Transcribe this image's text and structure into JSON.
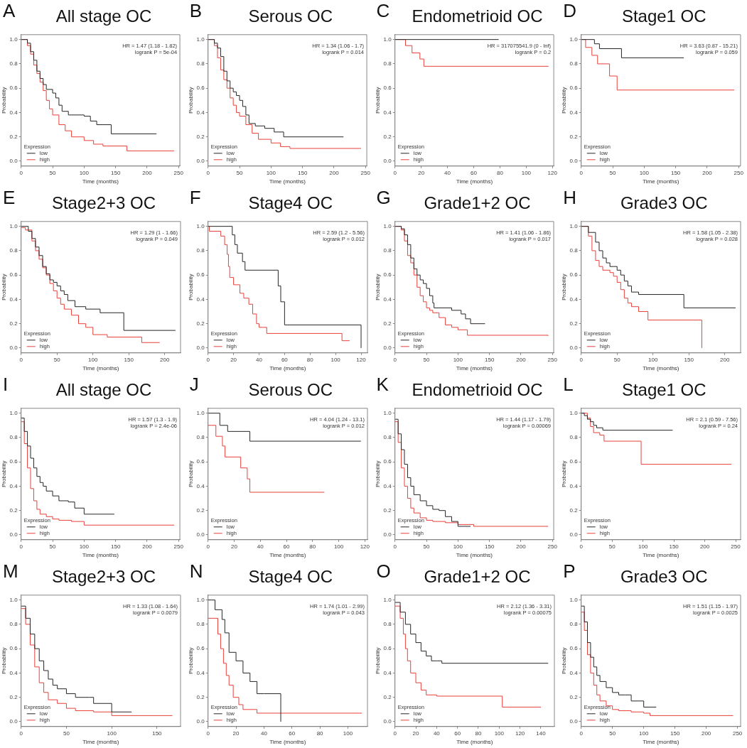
{
  "chart_data": [
    {
      "type": "step",
      "title": "All stage OC",
      "annotations": [
        "A",
        "HR = 1.47 (1.18 - 1.82)",
        "logrank P = 5e-04"
      ],
      "xlabel": "Time (months)",
      "ylabel": "Probability",
      "legend_title": "Expression",
      "legend": "bottom left",
      "xlim": [
        0,
        252
      ],
      "xticks": [
        0,
        50,
        100,
        150,
        200,
        250
      ],
      "ylim": [
        -0.04,
        1.04
      ],
      "yticks": [
        {
          "value": 0,
          "label": "0.0"
        },
        {
          "value": 0.2,
          "label": "0.2"
        },
        {
          "value": 0.4,
          "label": "0.4"
        },
        {
          "value": 0.6,
          "label": "0.6"
        },
        {
          "value": 0.8,
          "label": "0.8"
        },
        {
          "value": 1,
          "label": "1.0"
        }
      ],
      "series": [
        {
          "name": "low",
          "color": "#262626",
          "x": [
            0,
            10,
            15,
            20,
            25,
            30,
            35,
            40,
            50,
            55,
            60,
            65,
            75,
            100,
            110,
            120,
            143,
            215
          ],
          "values": [
            1,
            0.97,
            0.9,
            0.83,
            0.74,
            0.68,
            0.63,
            0.59,
            0.56,
            0.52,
            0.46,
            0.41,
            0.38,
            0.37,
            0.33,
            0.3,
            0.225,
            0.225
          ]
        },
        {
          "name": "high",
          "color": "#e8403a",
          "x": [
            0,
            10,
            15,
            20,
            25,
            30,
            35,
            40,
            45,
            50,
            60,
            70,
            80,
            100,
            115,
            130,
            168,
            243
          ],
          "values": [
            1,
            0.95,
            0.88,
            0.79,
            0.72,
            0.65,
            0.58,
            0.5,
            0.43,
            0.38,
            0.3,
            0.25,
            0.2,
            0.17,
            0.14,
            0.125,
            0.085,
            0.085
          ]
        }
      ]
    },
    {
      "type": "step",
      "title": "Serous OC",
      "annotations": [
        "B",
        "HR = 1.34 (1.06 - 1.7)",
        "logrank P = 0.014"
      ],
      "xlabel": "Time (months)",
      "ylabel": "Probability",
      "legend_title": "Expression",
      "legend": "bottom left",
      "xlim": [
        0,
        252
      ],
      "xticks": [
        0,
        50,
        100,
        150,
        200,
        250
      ],
      "ylim": [
        -0.04,
        1.04
      ],
      "yticks": [
        {
          "value": 0,
          "label": "0.0"
        },
        {
          "value": 0.2,
          "label": "0.2"
        },
        {
          "value": 0.4,
          "label": "0.4"
        },
        {
          "value": 0.6,
          "label": "0.6"
        },
        {
          "value": 0.8,
          "label": "0.8"
        },
        {
          "value": 1,
          "label": "1.0"
        }
      ],
      "series": [
        {
          "name": "low",
          "color": "#262626",
          "x": [
            0,
            10,
            15,
            20,
            25,
            30,
            35,
            40,
            45,
            50,
            55,
            60,
            65,
            75,
            90,
            105,
            120,
            215
          ],
          "values": [
            1,
            0.97,
            0.93,
            0.86,
            0.74,
            0.66,
            0.6,
            0.57,
            0.54,
            0.5,
            0.45,
            0.38,
            0.31,
            0.29,
            0.27,
            0.24,
            0.2,
            0.2
          ]
        },
        {
          "name": "high",
          "color": "#e8403a",
          "x": [
            0,
            10,
            15,
            20,
            25,
            30,
            35,
            40,
            45,
            50,
            60,
            70,
            80,
            100,
            115,
            130,
            243
          ],
          "values": [
            1,
            0.95,
            0.85,
            0.75,
            0.67,
            0.6,
            0.52,
            0.46,
            0.4,
            0.37,
            0.3,
            0.23,
            0.18,
            0.15,
            0.12,
            0.105,
            0.105
          ]
        }
      ]
    },
    {
      "type": "step",
      "title": "Endometrioid OC",
      "annotations": [
        "C",
        "HR = 317075541.9 (0 - Inf)",
        "logrank P = 0.2"
      ],
      "xlabel": "Time (months)",
      "ylabel": "Probability",
      "legend_title": "Expression",
      "legend": "bottom left",
      "xlim": [
        0,
        121
      ],
      "xticks": [
        0,
        20,
        40,
        60,
        80,
        100,
        120
      ],
      "ylim": [
        -0.04,
        1.04
      ],
      "yticks": [
        {
          "value": 0,
          "label": "0.0"
        },
        {
          "value": 0.2,
          "label": "0.2"
        },
        {
          "value": 0.4,
          "label": "0.4"
        },
        {
          "value": 0.6,
          "label": "0.6"
        },
        {
          "value": 0.8,
          "label": "0.8"
        },
        {
          "value": 1,
          "label": "1.0"
        }
      ],
      "series": [
        {
          "name": "low",
          "color": "#262626",
          "x": [
            0,
            79
          ],
          "values": [
            1,
            1
          ]
        },
        {
          "name": "high",
          "color": "#e8403a",
          "x": [
            0,
            8,
            13,
            19,
            22,
            117
          ],
          "values": [
            1,
            0.95,
            0.89,
            0.84,
            0.78,
            0.78
          ]
        }
      ]
    },
    {
      "type": "step",
      "title": "Stage1 OC",
      "annotations": [
        "D",
        "HR = 3.63 (0.87 - 15.21)",
        "logrank P = 0.059"
      ],
      "xlabel": "Time (months)",
      "ylabel": "Probability",
      "legend_title": "Expression",
      "legend": "bottom left",
      "xlim": [
        0,
        253
      ],
      "xticks": [
        0,
        50,
        100,
        150,
        200,
        250
      ],
      "ylim": [
        -0.04,
        1.04
      ],
      "yticks": [
        {
          "value": 0,
          "label": "0.0"
        },
        {
          "value": 0.2,
          "label": "0.2"
        },
        {
          "value": 0.4,
          "label": "0.4"
        },
        {
          "value": 0.6,
          "label": "0.6"
        },
        {
          "value": 0.8,
          "label": "0.8"
        },
        {
          "value": 1,
          "label": "1.0"
        }
      ],
      "series": [
        {
          "name": "low",
          "color": "#262626",
          "x": [
            0,
            21,
            29,
            64,
            163
          ],
          "values": [
            1,
            0.965,
            0.925,
            0.85,
            0.85
          ]
        },
        {
          "name": "high",
          "color": "#e8403a",
          "x": [
            0,
            7,
            17,
            26,
            45,
            57,
            243
          ],
          "values": [
            1,
            0.935,
            0.87,
            0.8,
            0.7,
            0.585,
            0.585
          ]
        }
      ]
    },
    {
      "type": "step",
      "title": "Stage2+3 OC",
      "annotations": [
        "E",
        "HR = 1.29 (1 - 1.66)",
        "logrank P = 0.049"
      ],
      "xlabel": "Time (months)",
      "ylabel": "Probability",
      "legend_title": "Expression",
      "legend": "bottom left",
      "xlim": [
        0,
        222
      ],
      "xticks": [
        0,
        50,
        100,
        150,
        200
      ],
      "ylim": [
        -0.04,
        1.04
      ],
      "yticks": [
        {
          "value": 0,
          "label": "0.0"
        },
        {
          "value": 0.2,
          "label": "0.2"
        },
        {
          "value": 0.4,
          "label": "0.4"
        },
        {
          "value": 0.6,
          "label": "0.6"
        },
        {
          "value": 0.8,
          "label": "0.8"
        },
        {
          "value": 1,
          "label": "1.0"
        }
      ],
      "series": [
        {
          "name": "low",
          "color": "#262626",
          "x": [
            0,
            10,
            15,
            20,
            25,
            30,
            35,
            40,
            45,
            50,
            55,
            60,
            65,
            75,
            90,
            110,
            143,
            215
          ],
          "values": [
            1,
            0.96,
            0.9,
            0.83,
            0.76,
            0.67,
            0.61,
            0.56,
            0.54,
            0.51,
            0.47,
            0.44,
            0.39,
            0.34,
            0.32,
            0.29,
            0.145,
            0.145
          ]
        },
        {
          "name": "high",
          "color": "#e8403a",
          "x": [
            0,
            6,
            15,
            20,
            25,
            30,
            35,
            40,
            45,
            50,
            55,
            60,
            70,
            80,
            90,
            100,
            120,
            168,
            193
          ],
          "values": [
            0.99,
            0.97,
            0.88,
            0.8,
            0.73,
            0.66,
            0.6,
            0.53,
            0.47,
            0.41,
            0.36,
            0.32,
            0.27,
            0.2,
            0.17,
            0.11,
            0.09,
            0.045,
            0.045
          ]
        }
      ]
    },
    {
      "type": "step",
      "title": "Stage4 OC",
      "annotations": [
        "F",
        "HR = 2.59 (1.2 - 5.56)",
        "logrank P = 0.012"
      ],
      "xlabel": "Time (months)",
      "ylabel": "Probability",
      "legend_title": "Expression",
      "legend": "bottom left",
      "xlim": [
        0,
        125
      ],
      "xticks": [
        0,
        20,
        40,
        60,
        80,
        100,
        120
      ],
      "ylim": [
        -0.04,
        1.04
      ],
      "yticks": [
        {
          "value": 0,
          "label": "0.0"
        },
        {
          "value": 0.2,
          "label": "0.2"
        },
        {
          "value": 0.4,
          "label": "0.4"
        },
        {
          "value": 0.6,
          "label": "0.6"
        },
        {
          "value": 0.8,
          "label": "0.8"
        },
        {
          "value": 1,
          "label": "1.0"
        }
      ],
      "series": [
        {
          "name": "low",
          "color": "#262626",
          "x": [
            0,
            19,
            21,
            23,
            27,
            29,
            55,
            57,
            60,
            120
          ],
          "values": [
            1,
            0.93,
            0.85,
            0.78,
            0.71,
            0.64,
            0.51,
            0.38,
            0.19,
            0
          ]
        },
        {
          "name": "high",
          "color": "#e8403a",
          "x": [
            0,
            1,
            10,
            13,
            15,
            16,
            17,
            20,
            25,
            28,
            32,
            35,
            38,
            40,
            46,
            105,
            111
          ],
          "values": [
            1,
            0.96,
            0.92,
            0.85,
            0.77,
            0.67,
            0.58,
            0.52,
            0.45,
            0.41,
            0.36,
            0.28,
            0.2,
            0.17,
            0.12,
            0.06,
            0.06
          ]
        }
      ]
    },
    {
      "type": "step",
      "title": "Grade1+2 OC",
      "annotations": [
        "G",
        "HR = 1.41 (1.06 - 1.86)",
        "logrank P = 0.017"
      ],
      "xlabel": "Time (months)",
      "ylabel": "Probability",
      "legend_title": "Expression",
      "legend": "bottom left",
      "xlim": [
        0,
        252
      ],
      "xticks": [
        0,
        50,
        100,
        150,
        200,
        250
      ],
      "ylim": [
        -0.04,
        1.04
      ],
      "yticks": [
        {
          "value": 0,
          "label": "0.0"
        },
        {
          "value": 0.2,
          "label": "0.2"
        },
        {
          "value": 0.4,
          "label": "0.4"
        },
        {
          "value": 0.6,
          "label": "0.6"
        },
        {
          "value": 0.8,
          "label": "0.8"
        },
        {
          "value": 1,
          "label": "1.0"
        }
      ],
      "series": [
        {
          "name": "low",
          "color": "#262626",
          "x": [
            0,
            10,
            15,
            20,
            25,
            30,
            35,
            40,
            45,
            50,
            55,
            60,
            62,
            90,
            105,
            112,
            120,
            143
          ],
          "values": [
            1,
            0.98,
            0.93,
            0.85,
            0.74,
            0.65,
            0.6,
            0.56,
            0.53,
            0.49,
            0.43,
            0.37,
            0.33,
            0.31,
            0.28,
            0.24,
            0.2,
            0.2
          ]
        },
        {
          "name": "high",
          "color": "#e8403a",
          "x": [
            0,
            10,
            15,
            20,
            25,
            30,
            35,
            40,
            45,
            50,
            55,
            60,
            70,
            80,
            90,
            100,
            115,
            243
          ],
          "values": [
            1,
            0.97,
            0.88,
            0.76,
            0.7,
            0.6,
            0.5,
            0.43,
            0.38,
            0.33,
            0.31,
            0.29,
            0.25,
            0.19,
            0.17,
            0.15,
            0.105,
            0.1
          ]
        }
      ]
    },
    {
      "type": "step",
      "title": "Grade3 OC",
      "annotations": [
        "H",
        "HR = 1.58 (1.05 - 2.38)",
        "logrank P = 0.028"
      ],
      "xlabel": "Time (months)",
      "ylabel": "Probability",
      "legend_title": "Expression",
      "legend": "bottom left",
      "xlim": [
        0,
        222
      ],
      "xticks": [
        0,
        50,
        100,
        150,
        200
      ],
      "ylim": [
        -0.04,
        1.04
      ],
      "yticks": [
        {
          "value": 0,
          "label": "0.0"
        },
        {
          "value": 0.2,
          "label": "0.2"
        },
        {
          "value": 0.4,
          "label": "0.4"
        },
        {
          "value": 0.6,
          "label": "0.6"
        },
        {
          "value": 0.8,
          "label": "0.8"
        },
        {
          "value": 1,
          "label": "1.0"
        }
      ],
      "series": [
        {
          "name": "low",
          "color": "#262626",
          "x": [
            0,
            10,
            20,
            25,
            30,
            35,
            40,
            45,
            50,
            55,
            60,
            65,
            70,
            80,
            143,
            215
          ],
          "values": [
            1,
            0.95,
            0.87,
            0.8,
            0.74,
            0.7,
            0.67,
            0.67,
            0.64,
            0.6,
            0.55,
            0.51,
            0.46,
            0.44,
            0.33,
            0.33
          ]
        },
        {
          "name": "high",
          "color": "#e8403a",
          "x": [
            0,
            10,
            15,
            20,
            25,
            30,
            40,
            45,
            50,
            55,
            60,
            65,
            70,
            80,
            93,
            168
          ],
          "values": [
            1,
            0.92,
            0.8,
            0.72,
            0.67,
            0.64,
            0.62,
            0.59,
            0.54,
            0.48,
            0.41,
            0.37,
            0.34,
            0.3,
            0.23,
            0
          ]
        }
      ]
    },
    {
      "type": "step",
      "title": "All stage OC",
      "annotations": [
        "I",
        "HR = 1.57 (1.3 - 1.9)",
        "logrank P = 2.4e-06"
      ],
      "xlabel": "Time (months)",
      "ylabel": "Probability",
      "legend_title": "Expression",
      "legend": "bottom left",
      "xlim": [
        0,
        252
      ],
      "xticks": [
        0,
        50,
        100,
        150,
        200,
        250
      ],
      "ylim": [
        -0.04,
        1.04
      ],
      "yticks": [
        {
          "value": 0,
          "label": "0.0"
        },
        {
          "value": 0.2,
          "label": "0.2"
        },
        {
          "value": 0.4,
          "label": "0.4"
        },
        {
          "value": 0.6,
          "label": "0.6"
        },
        {
          "value": 0.8,
          "label": "0.8"
        },
        {
          "value": 1,
          "label": "1.0"
        }
      ],
      "series": [
        {
          "name": "low",
          "color": "#262626",
          "x": [
            0,
            5,
            10,
            15,
            20,
            25,
            30,
            35,
            40,
            50,
            60,
            75,
            85,
            100,
            148
          ],
          "values": [
            0.96,
            0.85,
            0.73,
            0.63,
            0.55,
            0.48,
            0.43,
            0.4,
            0.36,
            0.32,
            0.28,
            0.27,
            0.22,
            0.17,
            0.17
          ]
        },
        {
          "name": "high",
          "color": "#e8403a",
          "x": [
            0,
            5,
            10,
            15,
            20,
            25,
            30,
            40,
            50,
            60,
            80,
            100,
            243
          ],
          "values": [
            0.93,
            0.75,
            0.55,
            0.38,
            0.28,
            0.21,
            0.17,
            0.15,
            0.13,
            0.12,
            0.11,
            0.08,
            0.08
          ]
        }
      ]
    },
    {
      "type": "step",
      "title": "Serous OC",
      "annotations": [
        "J",
        "HR = 4.04 (1.24 - 13.1)",
        "logrank P = 0.012"
      ],
      "xlabel": "Time (months)",
      "ylabel": "Probability",
      "legend_title": "Expression",
      "legend": "bottom left",
      "xlim": [
        0,
        122
      ],
      "xticks": [
        0,
        20,
        40,
        60,
        80,
        100,
        120
      ],
      "ylim": [
        -0.04,
        1.04
      ],
      "yticks": [
        {
          "value": 0,
          "label": "0.0"
        },
        {
          "value": 0.2,
          "label": "0.2"
        },
        {
          "value": 0.4,
          "label": "0.4"
        },
        {
          "value": 0.6,
          "label": "0.6"
        },
        {
          "value": 0.8,
          "label": "0.8"
        },
        {
          "value": 1,
          "label": "1.0"
        }
      ],
      "series": [
        {
          "name": "low",
          "color": "#262626",
          "x": [
            0,
            9,
            15,
            32,
            117
          ],
          "values": [
            1,
            0.9,
            0.85,
            0.77,
            0.77
          ]
        },
        {
          "name": "high",
          "color": "#e8403a",
          "x": [
            0,
            6,
            11,
            13,
            25,
            30,
            32,
            89
          ],
          "values": [
            0.9,
            0.81,
            0.73,
            0.64,
            0.55,
            0.46,
            0.35,
            0.35
          ]
        }
      ]
    },
    {
      "type": "step",
      "title": "Endometrioid OC",
      "annotations": [
        "K",
        "HR = 1.44 (1.17 - 1.79)",
        "logrank P = 0.00069"
      ],
      "xlabel": "Time (months)",
      "ylabel": "Probability",
      "legend_title": "Expression",
      "legend": "bottom left",
      "xlim": [
        0,
        252
      ],
      "xticks": [
        0,
        50,
        100,
        150,
        200,
        250
      ],
      "ylim": [
        -0.04,
        1.04
      ],
      "yticks": [
        {
          "value": 0,
          "label": "0.0"
        },
        {
          "value": 0.2,
          "label": "0.2"
        },
        {
          "value": 0.4,
          "label": "0.4"
        },
        {
          "value": 0.6,
          "label": "0.6"
        },
        {
          "value": 0.8,
          "label": "0.8"
        },
        {
          "value": 1,
          "label": "1.0"
        }
      ],
      "series": [
        {
          "name": "low",
          "color": "#262626",
          "x": [
            0,
            5,
            10,
            15,
            20,
            25,
            30,
            40,
            50,
            60,
            70,
            80,
            90,
            100,
            120
          ],
          "values": [
            0.95,
            0.83,
            0.7,
            0.58,
            0.47,
            0.4,
            0.33,
            0.28,
            0.24,
            0.21,
            0.2,
            0.15,
            0.11,
            0.07,
            0.07
          ]
        },
        {
          "name": "high",
          "color": "#e8403a",
          "x": [
            0,
            5,
            10,
            15,
            20,
            25,
            30,
            40,
            50,
            60,
            80,
            100,
            125,
            243
          ],
          "values": [
            0.93,
            0.76,
            0.55,
            0.4,
            0.3,
            0.22,
            0.18,
            0.14,
            0.12,
            0.11,
            0.1,
            0.085,
            0.07,
            0.07
          ]
        }
      ]
    },
    {
      "type": "step",
      "title": "Stage1 OC",
      "annotations": [
        "L",
        "HR = 2.1 (0.59 - 7.56)",
        "logrank P = 0.24"
      ],
      "xlabel": "Time (months)",
      "ylabel": "Probability",
      "legend_title": "Expression",
      "legend": "bottom left",
      "xlim": [
        0,
        258
      ],
      "xticks": [
        0,
        50,
        100,
        150,
        200,
        250
      ],
      "ylim": [
        -0.04,
        1.04
      ],
      "yticks": [
        {
          "value": 0,
          "label": "0.0"
        },
        {
          "value": 0.2,
          "label": "0.2"
        },
        {
          "value": 0.4,
          "label": "0.4"
        },
        {
          "value": 0.6,
          "label": "0.6"
        },
        {
          "value": 0.8,
          "label": "0.8"
        },
        {
          "value": 1,
          "label": "1.0"
        }
      ],
      "series": [
        {
          "name": "low",
          "color": "#262626",
          "x": [
            0,
            5,
            10,
            15,
            20,
            25,
            35,
            148
          ],
          "values": [
            1,
            0.98,
            0.95,
            0.93,
            0.9,
            0.88,
            0.86,
            0.86
          ]
        },
        {
          "name": "high",
          "color": "#e8403a",
          "x": [
            0,
            10,
            15,
            20,
            30,
            37,
            97,
            243
          ],
          "values": [
            1,
            0.96,
            0.89,
            0.84,
            0.82,
            0.77,
            0.58,
            0.58
          ]
        }
      ]
    },
    {
      "type": "step",
      "title": "Stage2+3 OC",
      "annotations": [
        "M",
        "HR = 1.33 (1.08 - 1.64)",
        "logrank P = 0.0079"
      ],
      "xlabel": "Time (months)",
      "ylabel": "Probability",
      "legend_title": "Expression",
      "legend": "bottom left",
      "xlim": [
        0,
        176
      ],
      "xticks": [
        0,
        50,
        100,
        150
      ],
      "ylim": [
        -0.04,
        1.04
      ],
      "yticks": [
        {
          "value": 0,
          "label": "0.0"
        },
        {
          "value": 0.2,
          "label": "0.2"
        },
        {
          "value": 0.4,
          "label": "0.4"
        },
        {
          "value": 0.6,
          "label": "0.6"
        },
        {
          "value": 0.8,
          "label": "0.8"
        },
        {
          "value": 1,
          "label": "1.0"
        }
      ],
      "series": [
        {
          "name": "low",
          "color": "#262626",
          "x": [
            0,
            5,
            10,
            15,
            20,
            25,
            30,
            35,
            40,
            50,
            60,
            75,
            80,
            100,
            122
          ],
          "values": [
            0.95,
            0.85,
            0.72,
            0.6,
            0.5,
            0.42,
            0.35,
            0.3,
            0.27,
            0.23,
            0.2,
            0.2,
            0.15,
            0.08,
            0.08
          ]
        },
        {
          "name": "high",
          "color": "#e8403a",
          "x": [
            0,
            5,
            10,
            15,
            20,
            25,
            30,
            40,
            50,
            60,
            80,
            100,
            167
          ],
          "values": [
            0.93,
            0.8,
            0.63,
            0.45,
            0.32,
            0.24,
            0.18,
            0.15,
            0.11,
            0.09,
            0.08,
            0.05,
            0.05
          ]
        }
      ]
    },
    {
      "type": "step",
      "title": "Stage4 OC",
      "annotations": [
        "N",
        "HR = 1.74 (1.01 - 2.99)",
        "logrank P = 0.043"
      ],
      "xlabel": "Time (months)",
      "ylabel": "Probability",
      "legend_title": "Expression",
      "legend": "bottom left",
      "xlim": [
        0,
        114
      ],
      "xticks": [
        0,
        20,
        40,
        60,
        80,
        100
      ],
      "ylim": [
        -0.04,
        1.04
      ],
      "yticks": [
        {
          "value": 0,
          "label": "0.0"
        },
        {
          "value": 0.2,
          "label": "0.2"
        },
        {
          "value": 0.4,
          "label": "0.4"
        },
        {
          "value": 0.6,
          "label": "0.6"
        },
        {
          "value": 0.8,
          "label": "0.8"
        },
        {
          "value": 1,
          "label": "1.0"
        }
      ],
      "series": [
        {
          "name": "low",
          "color": "#262626",
          "x": [
            0,
            5,
            10,
            12,
            15,
            20,
            25,
            30,
            35,
            40,
            52
          ],
          "values": [
            1,
            0.92,
            0.84,
            0.73,
            0.57,
            0.5,
            0.4,
            0.33,
            0.23,
            0.23,
            0
          ]
        },
        {
          "name": "high",
          "color": "#e8403a",
          "x": [
            0,
            7,
            9,
            11,
            13,
            15,
            18,
            22,
            25,
            35,
            110
          ],
          "values": [
            0.85,
            0.72,
            0.6,
            0.48,
            0.38,
            0.3,
            0.2,
            0.14,
            0.1,
            0.07,
            0.07
          ]
        }
      ]
    },
    {
      "type": "step",
      "title": "Grade1+2 OC",
      "annotations": [
        "O",
        "HR = 2.12 (1.36 - 3.31)",
        "logrank P = 0.00075"
      ],
      "xlabel": "Time (months)",
      "ylabel": "Probability",
      "legend_title": "Expression",
      "legend": "bottom left",
      "xlim": [
        0,
        153
      ],
      "xticks": [
        0,
        20,
        40,
        60,
        80,
        100,
        120,
        140
      ],
      "ylim": [
        -0.04,
        1.04
      ],
      "yticks": [
        {
          "value": 0,
          "label": "0.0"
        },
        {
          "value": 0.2,
          "label": "0.2"
        },
        {
          "value": 0.4,
          "label": "0.4"
        },
        {
          "value": 0.6,
          "label": "0.6"
        },
        {
          "value": 0.8,
          "label": "0.8"
        },
        {
          "value": 1,
          "label": "1.0"
        }
      ],
      "series": [
        {
          "name": "low",
          "color": "#262626",
          "x": [
            0,
            5,
            10,
            15,
            20,
            25,
            30,
            35,
            40,
            45,
            147
          ],
          "values": [
            0.98,
            0.9,
            0.8,
            0.72,
            0.65,
            0.58,
            0.54,
            0.5,
            0.5,
            0.48,
            0.48
          ]
        },
        {
          "name": "high",
          "color": "#e8403a",
          "x": [
            0,
            5,
            8,
            10,
            12,
            15,
            20,
            25,
            30,
            40,
            50,
            103,
            140
          ],
          "values": [
            0.95,
            0.85,
            0.72,
            0.6,
            0.5,
            0.4,
            0.32,
            0.26,
            0.22,
            0.21,
            0.21,
            0.12,
            0.12
          ]
        }
      ]
    },
    {
      "type": "step",
      "title": "Grade3 OC",
      "annotations": [
        "P",
        "HR = 1.51 (1.15 - 1.97)",
        "logrank P = 0.0025"
      ],
      "xlabel": "Time (months)",
      "ylabel": "Probability",
      "legend_title": "Expression",
      "legend": "bottom left",
      "xlim": [
        0,
        255
      ],
      "xticks": [
        0,
        50,
        100,
        150,
        200,
        250
      ],
      "ylim": [
        -0.04,
        1.04
      ],
      "yticks": [
        {
          "value": 0,
          "label": "0.0"
        },
        {
          "value": 0.2,
          "label": "0.2"
        },
        {
          "value": 0.4,
          "label": "0.4"
        },
        {
          "value": 0.6,
          "label": "0.6"
        },
        {
          "value": 0.8,
          "label": "0.8"
        },
        {
          "value": 1,
          "label": "1.0"
        }
      ],
      "series": [
        {
          "name": "low",
          "color": "#262626",
          "x": [
            0,
            5,
            10,
            15,
            20,
            25,
            30,
            40,
            50,
            60,
            70,
            80,
            100,
            120
          ],
          "values": [
            0.95,
            0.82,
            0.65,
            0.53,
            0.45,
            0.38,
            0.33,
            0.28,
            0.24,
            0.22,
            0.22,
            0.17,
            0.12,
            0.12
          ]
        },
        {
          "name": "high",
          "color": "#e8403a",
          "x": [
            0,
            5,
            10,
            15,
            20,
            25,
            30,
            40,
            50,
            60,
            80,
            100,
            110,
            243
          ],
          "values": [
            0.9,
            0.75,
            0.55,
            0.4,
            0.3,
            0.22,
            0.17,
            0.13,
            0.1,
            0.09,
            0.08,
            0.07,
            0.05,
            0.05
          ]
        }
      ]
    }
  ]
}
